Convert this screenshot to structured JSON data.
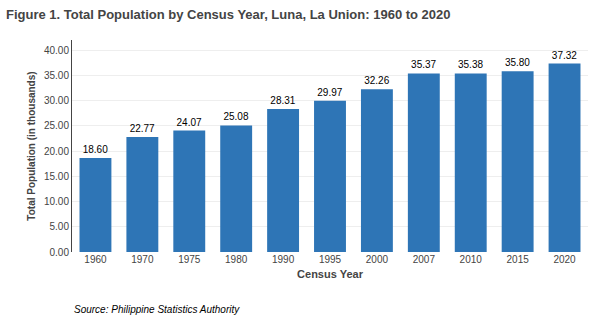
{
  "chart_data": {
    "type": "bar",
    "title": "Figure 1. Total Population by Census Year, Luna, La Union: 1960 to 2020",
    "xlabel": "Census Year",
    "ylabel": "Total Population (in thousands)",
    "annotations": [
      "Source: Philippine Statistics Authority"
    ],
    "categories": [
      "1960",
      "1970",
      "1975",
      "1980",
      "1990",
      "1995",
      "2000",
      "2007",
      "2010",
      "2015",
      "2020"
    ],
    "values": [
      18.6,
      22.77,
      24.07,
      25.08,
      28.31,
      29.97,
      32.26,
      35.37,
      35.38,
      35.8,
      37.32
    ],
    "value_labels": [
      "18.60",
      "22.77",
      "24.07",
      "25.08",
      "28.31",
      "29.97",
      "32.26",
      "35.37",
      "35.38",
      "35.80",
      "37.32"
    ],
    "data_labels": true,
    "color": "#2E75B6",
    "ylim": [
      0,
      42
    ],
    "yticks": [
      {
        "value": 0,
        "label": "0.00"
      },
      {
        "value": 5,
        "label": "5.00"
      },
      {
        "value": 10,
        "label": "10.00"
      },
      {
        "value": 15,
        "label": "15.00"
      },
      {
        "value": 20,
        "label": "20.00"
      },
      {
        "value": 25,
        "label": "25.00"
      },
      {
        "value": 30,
        "label": "30.00"
      },
      {
        "value": 35,
        "label": "35.00"
      },
      {
        "value": 40,
        "label": "40.00"
      }
    ],
    "grid": true
  }
}
